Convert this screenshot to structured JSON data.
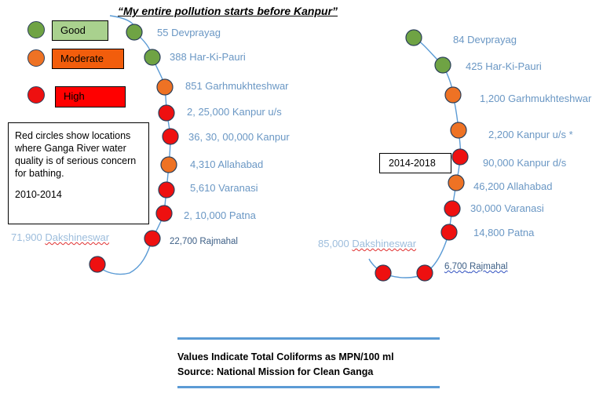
{
  "title": "“My entire pollution starts before Kanpur”",
  "legend": [
    {
      "label": "Good",
      "color": "#6fa344",
      "box": "#a9d18e"
    },
    {
      "label": "Moderate",
      "color": "#ee7224",
      "box": "#f25d0c"
    },
    {
      "label": "High",
      "color": "#ee1010",
      "box": "#ff0000"
    }
  ],
  "note": {
    "text": "Red circles show locations where Ganga River water quality is of serious concern for bathing.",
    "period": "2010-2014"
  },
  "period_2": "2014-2018",
  "left_labels": [
    {
      "text": "55 Devprayag"
    },
    {
      "text": "388 Har-Ki-Pauri"
    },
    {
      "text": "851 Garhmukhteshwar"
    },
    {
      "text": "2, 25,000 Kanpur u/s"
    },
    {
      "text": "36, 30, 00,000 Kanpur"
    },
    {
      "text": "4,310 Allahabad"
    },
    {
      "text": "5,610 Varanasi"
    },
    {
      "text": "2, 10,000 Patna"
    },
    {
      "text": "22,700 Rajmahal"
    },
    {
      "number": "71,900",
      "name": "Dakshineswar"
    }
  ],
  "right_labels": [
    {
      "text": "84 Devprayag"
    },
    {
      "text": "425 Har-Ki-Pauri"
    },
    {
      "text": "1,200 Garhmukhteshwar"
    },
    {
      "text": "2,200 Kanpur u/s *"
    },
    {
      "text": "90,000 Kanpur d/s"
    },
    {
      "text": "46,200 Allahabad"
    },
    {
      "text": "30,000 Varanasi"
    },
    {
      "text": "14,800 Patna"
    },
    {
      "number": "6,700",
      "name": "Rajmahal"
    },
    {
      "number": "85,000",
      "name": "Dakshineswar"
    }
  ],
  "left_points": [
    "good",
    "good",
    "moderate",
    "high",
    "high",
    "moderate",
    "high",
    "high",
    "high",
    "high"
  ],
  "right_points": [
    "good",
    "good",
    "moderate",
    "moderate",
    "high",
    "moderate",
    "high",
    "high",
    "high",
    "high"
  ],
  "source": {
    "line1": "Values Indicate Total Coliforms as MPN/100 ml",
    "line2": "Source: National Mission for Clean Ganga"
  }
}
